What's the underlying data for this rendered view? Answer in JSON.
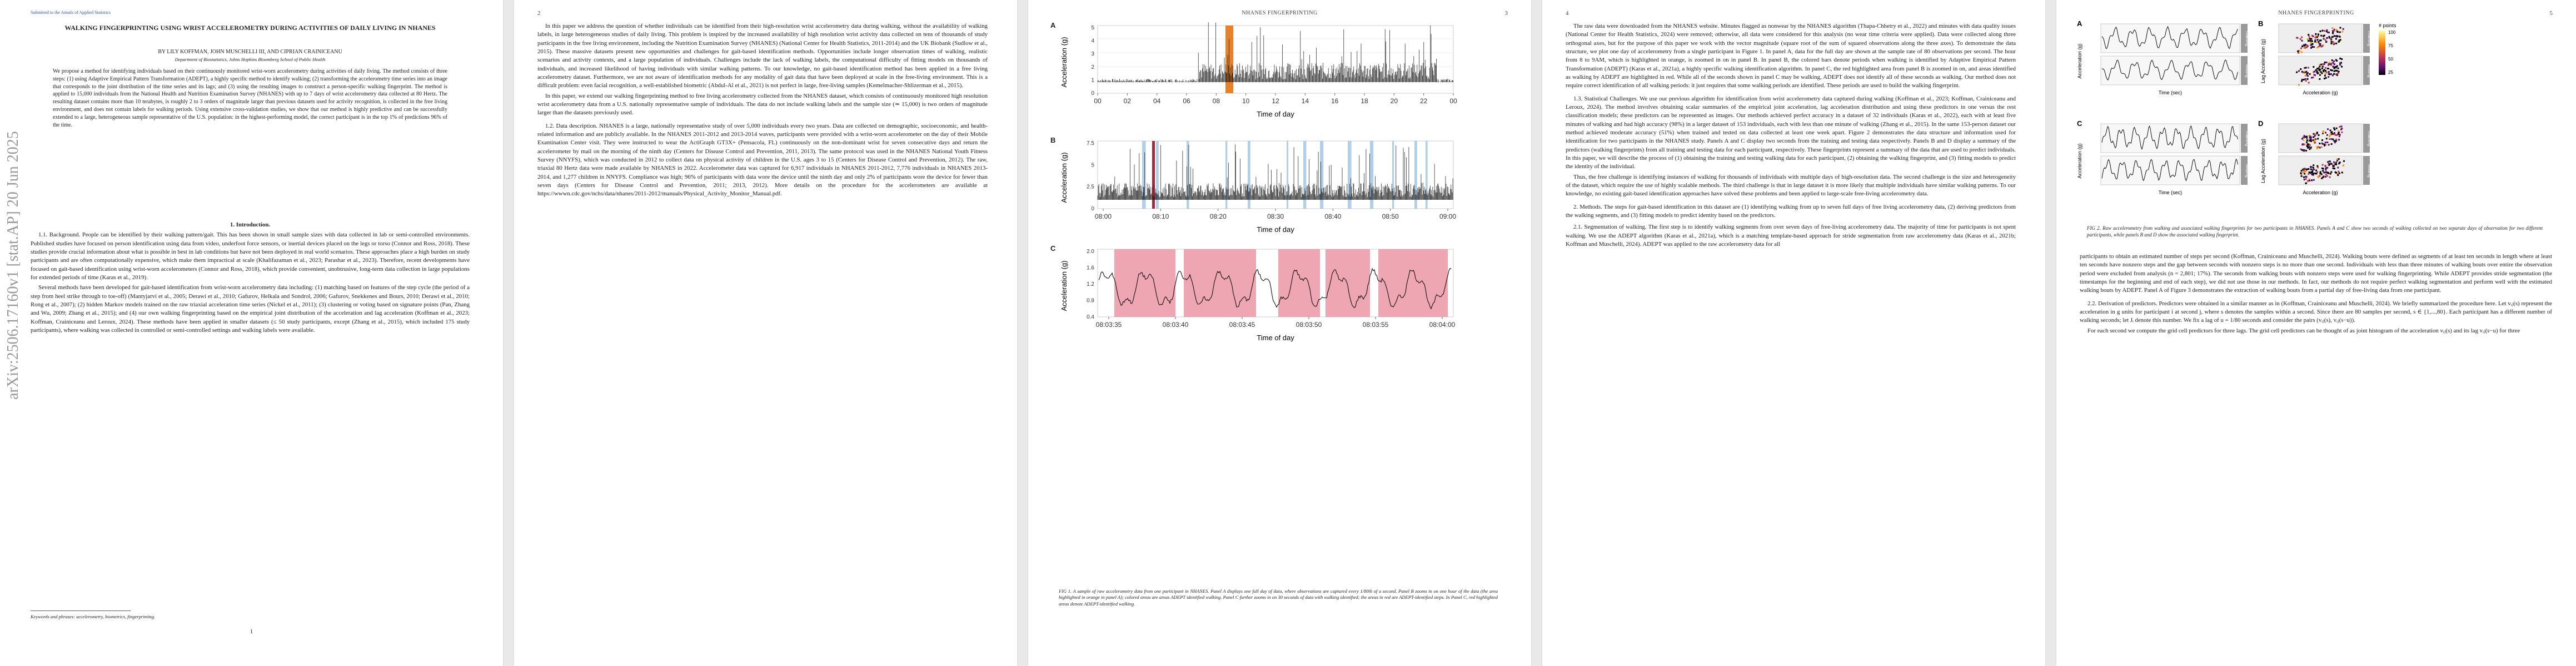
{
  "arxiv_id": "arXiv:2506.17160v1  [stat.AP]  20 Jun 2025",
  "colors": {
    "accent_orange": "#e8822a",
    "panel_c_blocks": "#e8889a",
    "link": "#1a3ea8"
  },
  "page1": {
    "submitted": "Submitted to the Annals of Applied Statistics",
    "title": "WALKING FINGERPRINTING USING WRIST ACCELEROMETRY DURING ACTIVITIES OF DAILY LIVING IN NHANES",
    "authors": "BY LILY KOFFMAN, JOHN MUSCHELLI III, AND CIPRIAN CRAINICEANU",
    "affiliation": "Department of Biostatistics, Johns Hopkins Bloomberg School of Public Health",
    "abstract": "We propose a method for identifying individuals based on their continuously monitored wrist-worn accelerometry during activities of daily living. The method consists of three steps: (1) using Adaptive Empirical Pattern Transformation (ADEPT), a highly specific method to identify walking; (2) transforming the accelerometry time series into an image that corresponds to the joint distribution of the time series and its lags; and (3) using the resulting images to construct a person-specific walking fingerprint. The method is applied to 15,000 individuals from the National Health and Nutrition Examination Survey (NHANES) with up to 7 days of wrist accelerometry data collected at 80 Hertz. The resulting dataset contains more than 10 terabytes, is roughly 2 to 3 orders of magnitude larger than previous datasets used for activity recognition, is collected in the free living environment, and does not contain labels for walking periods. Using extensive cross-validation studies, we show that our method is highly predictive and can be successfully extended to a large, heterogeneous sample representative of the U.S. population: in the highest-performing model, the correct participant is in the top 1% of predictions 96% of the time.",
    "intro_heading": "1. Introduction.",
    "para1": "1.1. Background. People can be identified by their walking pattern/gait. This has been shown in small sample sizes with data collected in lab or semi-controlled environments. Published studies have focused on person identification using data from video, underfoot force sensors, or inertial devices placed on the legs or torso (Connor and Ross, 2018). These studies provide crucial information about what is possible in best in lab conditions but have not been deployed in real world scenarios. These approaches place a high burden on study participants and are often computationally expensive, which make them impractical at scale (Khalifazaman et al., 2023; Parashar et al., 2023). Therefore, recent developments have focused on gait-based identification using wrist-worn accelerometers (Connor and Ross, 2018), which provide convenient, unobtrusive, long-term data collection in large populations for extended periods of time (Karas et al., 2019).",
    "para2": "Several methods have been developed for gait-based identification from wrist-worn accelerometry data including: (1) matching based on features of the step cycle (the period of a step from heel strike through to toe-off) (Mantyjarvi et al., 2005; Derawi et al., 2010; Gafurov, Helkala and Sondrol, 2006; Gafurov, Snekkenes and Bours, 2010; Derawi et al., 2010; Rong et al., 2007); (2) hidden Markov models trained on the raw triaxial acceleration time series (Nickel et al., 2011); (3) clustering or voting based on signature points (Pan, Zhang and Wu, 2009; Zhang et al., 2015); and (4) our own walking fingerprinting based on the empirical joint distribution of the acceleration and lag acceleration (Koffman et al., 2023; Koffman, Crainiceanu and Leroux, 2024). These methods have been applied in smaller datasets (≤ 50 study participants, except (Zhang et al., 2015), which included 175 study participants), where walking was collected in controlled or semi-controlled settings and walking labels were available.",
    "keywords": "Keywords and phrases: accelerometry, biometrics, fingerprinting.",
    "page_number": "1"
  },
  "page2": {
    "page_number": "2",
    "para1": "In this paper we address the question of whether individuals can be identified from their high-resolution wrist accelerometry data during walking, without the availability of walking labels, in large heterogeneous studies of daily living. This problem is inspired by the increased availability of high resolution wrist activity data collected on tens of thousands of study participants in the free living environment, including the Nutrition Examination Survey (NHANES) (National Center for Health Statistics, 2011-2014) and the UK Biobank (Sudlow et al., 2015). These massive datasets present new opportunities and challenges for gait-based identification methods. Opportunities include longer observation times of walking, realistic scenarios and activity contexts, and a large population of individuals. Challenges include the lack of walking labels, the computational difficulty of fitting models on thousands of individuals, and increased likelihood of having individuals with similar walking patterns. To our knowledge, no gait-based identification method has been applied in a free living accelerometry dataset. Furthermore, we are not aware of identification methods for any modality of gait data that have been deployed at scale in the free-living environment. This is a difficult problem: even facial recognition, a well-established biometric (Abdul-Al et al., 2021) is not perfect in large, free-living samples (Kemelmacher-Shlizerman et al., 2015).",
    "para2": "In this paper, we extend our walking fingerprinting method to free living accelerometry collected from the NHANES dataset, which consists of continuously monitored high resolution wrist accelerometry data from a U.S. nationally representative sample of individuals. The data do not include walking labels and the sample size (≃ 15,000) is two orders of magnitude larger than the datasets previously used.",
    "para3": "1.2. Data description. NHANES is a large, nationally representative study of over 5,000 individuals every two years. Data are collected on demographic, socioeconomic, and health-related information and are publicly available. In the NHANES 2011-2012 and 2013-2014 waves, participants were provided with a wrist-worn accelerometer on the day of their Mobile Examination Center visit. They were instructed to wear the ActiGraph GT3X+ (Pensacola, FL) continuously on the non-dominant wrist for seven consecutive days and return the accelerometer by mail on the morning of the ninth day (Centers for Disease Control and Prevention, 2011, 2013). The same protocol was used in the NHANES National Youth Fitness Survey (NNYFS), which was conducted in 2012 to collect data on physical activity of children in the U.S. ages 3 to 15 (Centers for Disease Control and Prevention, 2012). The raw, triaxial 80 Hertz data were made available by NHANES in 2022. Accelerometer data was captured for 6,917 individuals in NHANES 2011-2012, 7,776 individuals in NHANES 2013-2014, and 1,277 children in NNYFS. Compliance was high; 96% of participants with data wore the device until the ninth day and only 2% of participants wore the device for fewer than seven days (Centers for Disease Control and Prevention, 2011; 2013, 2012). More details on the procedure for the accelerometers are available at https://wwwn.cdc.gov/nchs/data/nhanes/2011-2012/manuals/Physical_Activity_Monitor_Manual.pdf."
  },
  "page3": {
    "running_head": "NHANES FINGERPRINTING",
    "page_number": "3",
    "panelA": {
      "label": "A",
      "ylabel": "Acceleration (g)",
      "xlabel": "Time of day",
      "ticks": [
        "00",
        "02",
        "04",
        "06",
        "08",
        "10",
        "12",
        "14",
        "16",
        "18",
        "20",
        "22",
        "00"
      ],
      "yticks": [
        "0",
        "1",
        "2",
        "3",
        "4",
        "5"
      ]
    },
    "panelB": {
      "label": "B",
      "ylabel": "Acceleration (g)",
      "xlabel": "Time of day",
      "ticks": [
        "08:00",
        "08:10",
        "08:20",
        "08:30",
        "08:40",
        "08:50",
        "09:00"
      ],
      "yticks": [
        "0",
        "2.5",
        "5",
        "7.5"
      ]
    },
    "panelC": {
      "label": "C",
      "ylabel": "Acceleration (g)",
      "xlabel": "Time of day",
      "ticks": [
        "08:03:35",
        "08:03:40",
        "08:03:45",
        "08:03:50",
        "08:03:55",
        "08:04:00"
      ],
      "yticks": [
        "0.4",
        "0.8",
        "1.2",
        "1.6",
        "2.0"
      ]
    },
    "caption": "FIG 1. A sample of raw accelerometry data from one participant in NHANES. Panel A displays one full day of data, where observations are captured every 1/80th of a second. Panel B zooms in on one hour of the data (the area highlighted in orange in panel A); colored areas are areas ADEPT identified walking. Panel C further zooms in on 30 seconds of data with walking identified; the areas in red are ADEPT-identified steps. In Panel C, red highlighted areas denote ADEPT-identified walking."
  },
  "page4": {
    "page_number": "4",
    "para1": "The raw data were downloaded from the NHANES website. Minutes flagged as nonwear by the NHANES algorithm (Thapa-Chhetry et al., 2022) and minutes with data quality issues (National Center for Health Statistics, 2024) were removed; otherwise, all data were considered for this analysis (no wear time criteria were applied). Data were collected along three orthogonal axes, but for the purpose of this paper we work with the vector magnitude (square root of the sum of squared observations along the three axes). To demonstrate the data structure, we plot one day of accelerometry from a single participant in Figure 1. In panel A, data for the full day are shown at the sample rate of 80 observations per second. The hour from 8 to 9AM, which is highlighted in orange, is zoomed in on in panel B. In panel B, the colored bars denote periods when walking is identified by Adaptive Empirical Pattern Transformation (ADEPT) (Karas et al., 2021a), a highly specific walking identification algorithm. In panel C, the red highlighted area from panel B is zoomed in on, and areas identified as walking by ADEPT are highlighted in red. While all of the seconds shown in panel C may be walking, ADEPT does not identify all of these seconds as walking. Our method does not require correct identification of all walking periods: it just requires that some walking periods are identified. These periods are used to build the walking fingerprint.",
    "para2": "1.3. Statistical Challenges. We use our previous algorithm for identification from wrist accelerometry data captured during walking (Koffman et al., 2023; Koffman, Crainiceanu and Leroux, 2024). The method involves obtaining scalar summaries of the empirical joint acceleration, lag acceleration distribution and using these predictors in one versus the rest classification models; these predictors can be represented as images. Our methods achieved perfect accuracy in a dataset of 32 individuals (Karas et al., 2022), each with at least five minutes of walking and had high accuracy (98%) in a larger dataset of 153 individuals, each with less than one minute of walking (Zhang et al., 2015). In the same 153-person dataset our method achieved moderate accuracy (51%) when trained and tested on data collected at least one week apart. Figure 2 demonstrates the data structure and information used for identification for two participants in the NHANES study. Panels A and C display two seconds from the training and testing data respectively. Panels B and D display a summary of the predictors (walking fingerprints) from all training and testing data for each participant, respectively. These fingerprints represent a summary of the data that are used to predict individuals. In this paper, we will describe the process of (1) obtaining the training and testing walking data for each participant, (2) obtaining the walking fingerprint, and (3) fitting models to predict the identity of the individual.",
    "para3": "Thus, the free challenge is identifying instances of walking for thousands of individuals with multiple days of high-resolution data. The second challenge is the size and heterogeneity of the dataset, which require the use of highly scalable methods. The third challenge is that in large dataset it is more likely that multiple individuals have similar walking patterns. To our knowledge, no existing gait-based identification approaches have solved these problems and been applied to large-scale free-living accelerometry data.",
    "para4": "2. Methods. The steps for gait-based identification in this dataset are (1) identifying walking from up to seven full days of free living accelerometry data, (2) deriving predictors from the walking segments, and (3) fitting models to predict identity based on the predictors.",
    "para5": "2.1. Segmentation of walking. The first step is to identify walking segments from over seven days of free-living accelerometry data. The majority of time for participants is not spent walking. We use the ADEPT algorithm (Karas et al., 2021a), which is a matching template-based approach for stride segmentation from raw accelerometry data (Karas et al., 2021b; Koffman and Muschelli, 2024). ADEPT was applied to the raw accelerometry data for all"
  },
  "page5": {
    "running_head": "NHANES FINGERPRINTING",
    "page_number": "5",
    "fig_labels": {
      "A": "A",
      "B": "B",
      "C": "C",
      "D": "D"
    },
    "ylab_acc": "Acceleration (g)",
    "ylab_lag": "Lag Acceleration (g)",
    "xlab_time": "Time (sec)",
    "xlab_acc": "Acceleration (g)",
    "legend_title": "# points",
    "legend_vals": [
      "100",
      "75",
      "50",
      "25"
    ],
    "strip": [
      "Training",
      "Testing"
    ],
    "caption": "FIG 2. Raw accelerometry from walking and associated walking fingerprints for two participants in NHANES. Panels A and C show two seconds of walking collected on two separate days of observation for two different participants, while panels B and D show the associated walking fingerprint.",
    "para1": "participants to obtain an estimated number of steps per second (Koffman, Crainiceanu and Muschelli, 2024). Walking bouts were defined as segments of at least ten seconds in length where at least ten seconds have nonzero steps and the gap between seconds with nonzero steps is no more than one second. Individuals with less than three minutes of walking bouts over entire the observation period were excluded from analysis (n = 2,801; 17%). The seconds from walking bouts with nonzero steps were used for walking fingerprinting. While ADEPT provides stride segmentation (the timestamps for the beginning and end of each step), we did not use those in our methods. In fact, our methods do not require perfect walking segmentation and perform well with the estimated walking bouts by ADEPT. Panel A of Figure 3 demonstrates the extraction of walking bouts from a partial day of free-living data from one participant.",
    "para2": "2.2. Derivation of predictors. Predictors were obtained in a similar manner as in (Koffman, Crainiceanu and Muschelli, 2024). We briefly summarized the procedure here. Let vᵢⱼ(s) represent the acceleration in g units for participant i at second j, where s denotes the samples within a second. Since there are 80 samples per second, s ∈ {1,...,80}. Each participant has a different number of walking seconds; let Jᵢ denote this number. We fix a lag of u = 1/80 seconds and consider the pairs (vᵢⱼ(s), vᵢⱼ(s−u)).",
    "para3": "For each second we compute the grid cell predictors for three lags. The grid cell predictors can be thought of as joint histogram of the acceleration vᵢⱼ(s) and its lag vᵢⱼ(s−u) for three"
  }
}
